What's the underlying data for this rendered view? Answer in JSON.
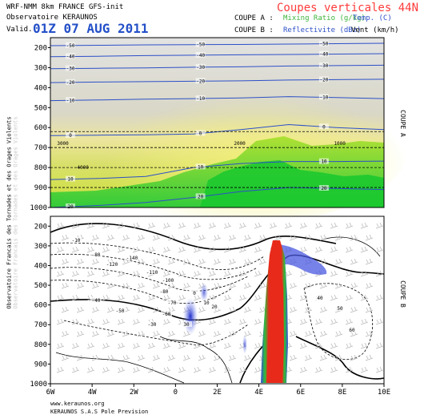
{
  "header": {
    "line1": "WRF-NMM 8km FRANCE  GFS-init",
    "line2": "Observatoire KERAUNOS",
    "valid_label": "Valid.",
    "valid_time": "01Z 07 AUG 2011",
    "title": "Coupes verticales 44N",
    "coupe_a": "COUPE A :",
    "coupe_b": "COUPE B :",
    "coupe_a_mix": "Mixing Ratio (g/kg)",
    "coupe_a_temp": "Temp. (C)",
    "coupe_b_refl": "Reflectivite (dBz)",
    "coupe_b_wind": "Vent (km/h)"
  },
  "side": {
    "left_1": "Observatoire Francais des Tornades et des Orages Violents",
    "left_2": "Observatoire Francais des Tornades et des Orages Violents",
    "right_a": "COUPE A",
    "right_b": "COUPE B"
  },
  "footer": {
    "line1": "www.keraunos.org",
    "line2": "KERAUNOS S.A.S Pole Prevision"
  },
  "colors": {
    "title": "#ff3b3b",
    "valid_time": "#2450c8",
    "mix": "#3fb53f",
    "temp": "#2d50c8",
    "isoline": "#2d50c8",
    "reflectivity_core": "#e82a1a",
    "reflectivity_mid": "#2cbf3a",
    "reflectivity_low": "#3a48d8"
  },
  "chart_data": [
    {
      "type": "heatmap",
      "name": "coupe-a",
      "ylabel": "",
      "y_ticks": [
        "200",
        "300",
        "400",
        "500",
        "600",
        "700",
        "800",
        "900",
        "1000"
      ],
      "ylim": [
        1000,
        150
      ],
      "y_scale": "pressure (hPa)",
      "temperature_contour_labels": [
        "-50",
        "-40",
        "-30",
        "-20",
        "-10",
        "0",
        "10",
        "20"
      ],
      "dashed_level_labels": [
        "3000",
        "2000",
        "1000",
        "4000"
      ],
      "temperature_isolines": [
        {
          "label": "-50",
          "pressure": [
            190,
            188,
            186,
            185,
            184,
            182,
            180,
            178
          ]
        },
        {
          "label": "-40",
          "pressure": [
            245,
            243,
            240,
            238,
            236,
            234,
            232,
            230
          ]
        },
        {
          "label": "-30",
          "pressure": [
            305,
            303,
            301,
            298,
            296,
            292,
            290,
            288
          ]
        },
        {
          "label": "-20",
          "pressure": [
            375,
            372,
            370,
            368,
            366,
            362,
            360,
            358
          ]
        },
        {
          "label": "-10",
          "pressure": [
            465,
            462,
            458,
            455,
            452,
            445,
            450,
            455
          ]
        },
        {
          "label": "0",
          "pressure": [
            640,
            638,
            636,
            632,
            610,
            585,
            600,
            610
          ]
        },
        {
          "label": "10",
          "pressure": [
            860,
            855,
            845,
            800,
            780,
            770,
            770,
            768
          ]
        },
        {
          "label": "20",
          "pressure": [
            1000,
            990,
            975,
            950,
            920,
            900,
            905,
            910
          ]
        }
      ],
      "x_positions": [
        "6W",
        "4W",
        "2W",
        "0",
        "2E",
        "4E",
        "6E",
        "8E",
        "10E"
      ]
    },
    {
      "type": "heatmap",
      "name": "coupe-b",
      "xlabel": "",
      "x_ticks": [
        "6W",
        "4W",
        "2W",
        "0",
        "2E",
        "4E",
        "6E",
        "8E",
        "10E"
      ],
      "y_ticks": [
        "200",
        "300",
        "400",
        "500",
        "600",
        "700",
        "800",
        "900",
        "1000"
      ],
      "ylim": [
        1000,
        150
      ],
      "contour_labels": [
        "-10",
        "-80",
        "-120",
        "-140",
        "-110",
        "-100",
        "-80",
        "-70",
        "-60",
        "-50",
        "-40",
        "-30",
        "0",
        "10",
        "20",
        "30",
        "40",
        "50",
        "60"
      ],
      "reflectivity_cells": [
        {
          "lon": 0.7,
          "pressure": 680,
          "dbz": 25
        },
        {
          "lon": 1.2,
          "pressure": 580,
          "dbz": 20
        },
        {
          "lon": 3.3,
          "pressure": 720,
          "dbz": 18
        },
        {
          "lon": 4.8,
          "pressure": 600,
          "dbz": 55
        },
        {
          "lon": 5.2,
          "pressure": 400,
          "dbz": 30
        }
      ]
    }
  ]
}
